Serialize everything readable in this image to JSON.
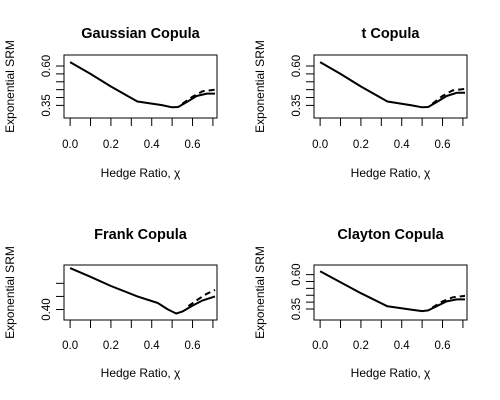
{
  "chart_data": [
    {
      "type": "line",
      "title": "Gaussian Copula",
      "xlabel": "Hedge Ratio, χ",
      "ylabel": "Exponential SRM",
      "xlim": [
        -0.03,
        0.72
      ],
      "ylim": [
        0.27,
        0.67
      ],
      "xticks": [
        0,
        0.1,
        0.2,
        0.3,
        0.4,
        0.5,
        0.6,
        0.7
      ],
      "xtick_labels": [
        "0.0",
        "",
        "0.2",
        "",
        "0.4",
        "",
        "0.6",
        ""
      ],
      "yticks": [
        0.35,
        0.4,
        0.45,
        0.5,
        0.55,
        0.6
      ],
      "ytick_labels": [
        "0.35",
        "",
        "",
        "",
        "",
        "0.60"
      ],
      "series": [
        {
          "style": "solid",
          "x": [
            0,
            0.1,
            0.2,
            0.33,
            0.45,
            0.5,
            0.53,
            0.57,
            0.62,
            0.67,
            0.71
          ],
          "y": [
            0.625,
            0.55,
            0.47,
            0.375,
            0.352,
            0.338,
            0.34,
            0.37,
            0.41,
            0.425,
            0.425
          ]
        },
        {
          "style": "dashed",
          "x": [
            0.55,
            0.6,
            0.65,
            0.71
          ],
          "y": [
            0.36,
            0.405,
            0.44,
            0.45
          ]
        }
      ]
    },
    {
      "type": "line",
      "title": "t Copula",
      "xlabel": "Hedge Ratio, χ",
      "ylabel": "Exponential SRM",
      "xlim": [
        -0.03,
        0.72
      ],
      "ylim": [
        0.27,
        0.67
      ],
      "xticks": [
        0,
        0.1,
        0.2,
        0.3,
        0.4,
        0.5,
        0.6,
        0.7
      ],
      "xtick_labels": [
        "0.0",
        "",
        "0.2",
        "",
        "0.4",
        "",
        "0.6",
        ""
      ],
      "yticks": [
        0.35,
        0.4,
        0.45,
        0.5,
        0.55,
        0.6
      ],
      "ytick_labels": [
        "0.35",
        "",
        "",
        "",
        "",
        "0.60"
      ],
      "series": [
        {
          "style": "solid",
          "x": [
            0,
            0.1,
            0.2,
            0.33,
            0.45,
            0.5,
            0.53,
            0.57,
            0.62,
            0.67,
            0.71
          ],
          "y": [
            0.625,
            0.55,
            0.47,
            0.375,
            0.35,
            0.338,
            0.34,
            0.37,
            0.41,
            0.43,
            0.43
          ]
        },
        {
          "style": "dashed",
          "x": [
            0.55,
            0.6,
            0.65,
            0.71
          ],
          "y": [
            0.36,
            0.41,
            0.445,
            0.455
          ]
        }
      ]
    },
    {
      "type": "line",
      "title": "Frank Copula",
      "xlabel": "Hedge Ratio, χ",
      "ylabel": "Exponential SRM",
      "xlim": [
        -0.03,
        0.72
      ],
      "ylim": [
        0.36,
        0.57
      ],
      "xticks": [
        0,
        0.1,
        0.2,
        0.3,
        0.4,
        0.5,
        0.6,
        0.7
      ],
      "xtick_labels": [
        "0.0",
        "",
        "0.2",
        "",
        "0.4",
        "",
        "0.6",
        ""
      ],
      "yticks": [
        0.4,
        0.45,
        0.5
      ],
      "ytick_labels": [
        "0.40",
        "",
        ""
      ],
      "series": [
        {
          "style": "solid",
          "x": [
            0,
            0.1,
            0.2,
            0.33,
            0.43,
            0.48,
            0.52,
            0.55,
            0.6,
            0.65,
            0.71
          ],
          "y": [
            0.558,
            0.525,
            0.49,
            0.45,
            0.425,
            0.4,
            0.385,
            0.392,
            0.415,
            0.435,
            0.45
          ]
        },
        {
          "style": "dashed",
          "x": [
            0.58,
            0.63,
            0.67,
            0.71
          ],
          "y": [
            0.413,
            0.44,
            0.46,
            0.475
          ]
        }
      ]
    },
    {
      "type": "line",
      "title": "Clayton Copula",
      "xlabel": "Hedge Ratio, χ",
      "ylabel": "Exponential SRM",
      "xlim": [
        -0.03,
        0.72
      ],
      "ylim": [
        0.27,
        0.67
      ],
      "xticks": [
        0,
        0.1,
        0.2,
        0.3,
        0.4,
        0.5,
        0.6,
        0.7
      ],
      "xtick_labels": [
        "0.0",
        "",
        "0.2",
        "",
        "0.4",
        "",
        "0.6",
        ""
      ],
      "yticks": [
        0.35,
        0.4,
        0.45,
        0.5,
        0.55,
        0.6
      ],
      "ytick_labels": [
        "0.35",
        "",
        "",
        "",
        "",
        "0.60"
      ],
      "series": [
        {
          "style": "solid",
          "x": [
            0,
            0.1,
            0.2,
            0.33,
            0.45,
            0.5,
            0.53,
            0.57,
            0.62,
            0.67,
            0.71
          ],
          "y": [
            0.625,
            0.545,
            0.465,
            0.37,
            0.345,
            0.335,
            0.34,
            0.37,
            0.405,
            0.42,
            0.42
          ]
        },
        {
          "style": "dashed",
          "x": [
            0.55,
            0.6,
            0.65,
            0.71
          ],
          "y": [
            0.36,
            0.405,
            0.435,
            0.445
          ]
        }
      ]
    }
  ]
}
